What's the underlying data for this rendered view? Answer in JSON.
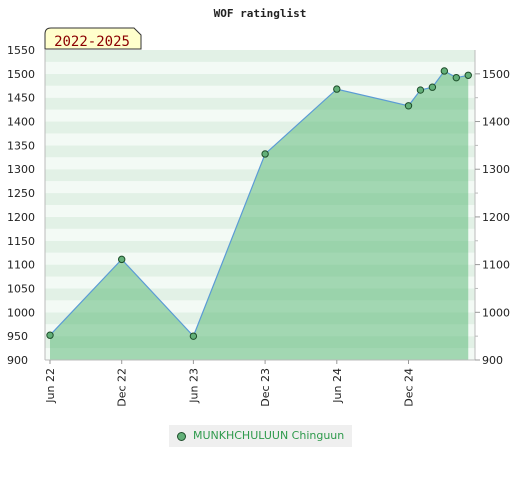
{
  "chart_data": {
    "type": "area",
    "title": "WOF ratinglist",
    "period_badge": "2022-2025",
    "ylim": [
      900,
      1550
    ],
    "y_ticks_left": [
      900,
      950,
      1000,
      1050,
      1100,
      1150,
      1200,
      1250,
      1300,
      1350,
      1400,
      1450,
      1500,
      1550
    ],
    "y_ticks_right": [
      900,
      1000,
      1100,
      1200,
      1300,
      1400,
      1500
    ],
    "x_ticks": [
      "Jun 22",
      "Dec 22",
      "Jun 23",
      "Dec 23",
      "Jun 24",
      "Dec 24"
    ],
    "grid": true,
    "legend_position": "bottom-center",
    "series": [
      {
        "name": "MUNKHCHULUUN Chinguun",
        "x": [
          "2022-06",
          "2022-12",
          "2023-06",
          "2023-12",
          "2024-06",
          "2024-12",
          "2025-01",
          "2025-02",
          "2025-03",
          "2025-04",
          "2025-05"
        ],
        "values": [
          952,
          1111,
          950,
          1332,
          1468,
          1433,
          1466,
          1472,
          1506,
          1492,
          1497
        ]
      }
    ],
    "colors": {
      "fill": "#5fb97a",
      "line": "#5b9bd5",
      "marker": "#63b079",
      "marker_edge": "#1d4d2a",
      "badge_bg": "#ffffcc",
      "badge_text": "#8b0000"
    }
  }
}
